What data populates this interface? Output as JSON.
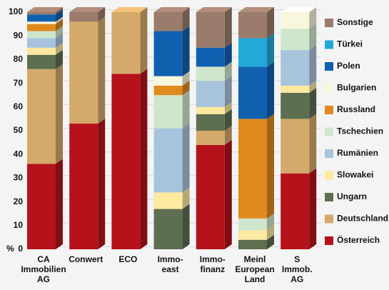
{
  "chart_data": {
    "type": "stacked-bar",
    "y_label": "%",
    "categories": [
      [
        "CA",
        "Immobilien",
        "AG"
      ],
      [
        "Conwert"
      ],
      [
        "ECO"
      ],
      [
        "Immo-",
        "east"
      ],
      [
        "Immo-",
        "finanz"
      ],
      [
        "Meinl",
        "European",
        "Land"
      ],
      [
        "S",
        "Immob.",
        "AG"
      ]
    ],
    "series": [
      {
        "name": "Österreich",
        "color": "#b5121b",
        "values": [
          36,
          53,
          74,
          0,
          44,
          0,
          32
        ]
      },
      {
        "name": "Deutschland",
        "color": "#d4a96a",
        "values": [
          40,
          43,
          26,
          0,
          6,
          0,
          23
        ]
      },
      {
        "name": "Ungarn",
        "color": "#5e6e50",
        "values": [
          6,
          0,
          0,
          17,
          7,
          4,
          11
        ]
      },
      {
        "name": "Slowakei",
        "color": "#fde9a0",
        "values": [
          3,
          0,
          0,
          7,
          3,
          4,
          3
        ]
      },
      {
        "name": "Rumänien",
        "color": "#a8c4dc",
        "values": [
          4,
          0,
          0,
          27,
          11,
          0,
          15
        ]
      },
      {
        "name": "Tschechien",
        "color": "#cfe6cc",
        "values": [
          3,
          0,
          0,
          14,
          6,
          5,
          9
        ]
      },
      {
        "name": "Russland",
        "color": "#e08a1e",
        "values": [
          3,
          0,
          0,
          4,
          0,
          42,
          0
        ]
      },
      {
        "name": "Bulgarien",
        "color": "#f8f6dc",
        "values": [
          1,
          0,
          0,
          4,
          0,
          0,
          7
        ]
      },
      {
        "name": "Polen",
        "color": "#1060b0",
        "values": [
          3,
          0,
          0,
          19,
          8,
          22,
          0
        ]
      },
      {
        "name": "Türkei",
        "color": "#22a9d8",
        "values": [
          0,
          0,
          0,
          0,
          0,
          12,
          0
        ]
      },
      {
        "name": "Sonstige",
        "color": "#9b7b6b",
        "values": [
          1,
          4,
          0,
          8,
          15,
          11,
          0
        ]
      }
    ],
    "ylim": [
      0,
      100
    ],
    "yticks": [
      0,
      10,
      20,
      30,
      40,
      50,
      60,
      70,
      80,
      90,
      100
    ],
    "grid": true,
    "legend": "right"
  }
}
